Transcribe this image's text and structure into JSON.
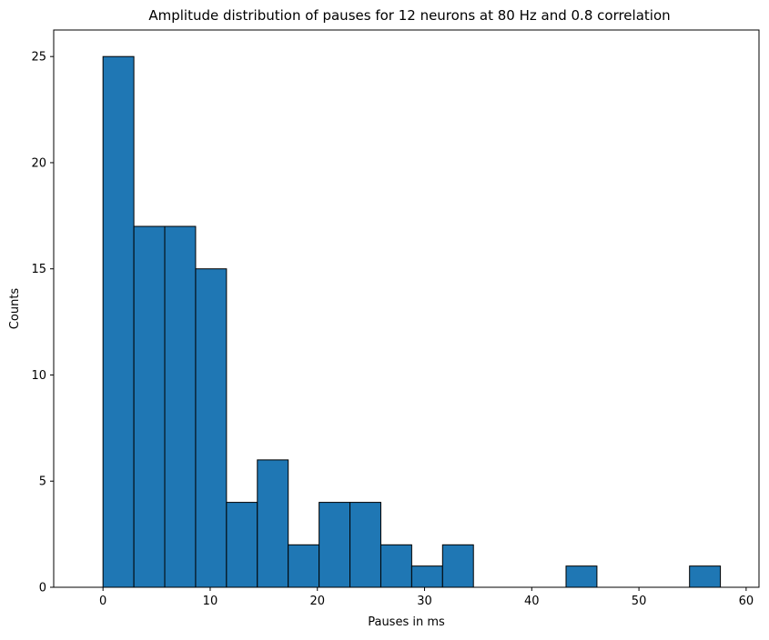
{
  "chart_data": {
    "type": "bar",
    "title": "Amplitude distribution of pauses for 12 neurons at 80 Hz and 0.8 correlation",
    "xlabel": "Pauses in ms",
    "ylabel": "Counts",
    "xlim": [
      -4.6,
      61.2
    ],
    "ylim": [
      0,
      26.25
    ],
    "bin_edges": [
      0,
      2.88,
      5.76,
      8.64,
      11.52,
      14.4,
      17.28,
      20.16,
      23.04,
      25.92,
      28.8,
      31.68,
      34.56,
      37.44,
      40.32,
      43.2,
      46.08,
      48.96,
      51.84,
      54.72,
      57.6
    ],
    "values": [
      25,
      17,
      17,
      15,
      4,
      6,
      2,
      4,
      4,
      2,
      1,
      2,
      0,
      0,
      0,
      1,
      0,
      0,
      0,
      1
    ],
    "xticks": [
      0,
      10,
      20,
      30,
      40,
      50,
      60
    ],
    "xtick_labels": [
      "0",
      "10",
      "20",
      "30",
      "40",
      "50",
      "60"
    ],
    "yticks": [
      0,
      5,
      10,
      15,
      20,
      25
    ],
    "ytick_labels": [
      "0",
      "5",
      "10",
      "15",
      "20",
      "25"
    ],
    "bar_color": "#1f77b4",
    "edge_color": "#000000",
    "grid": false,
    "legend": "none"
  }
}
